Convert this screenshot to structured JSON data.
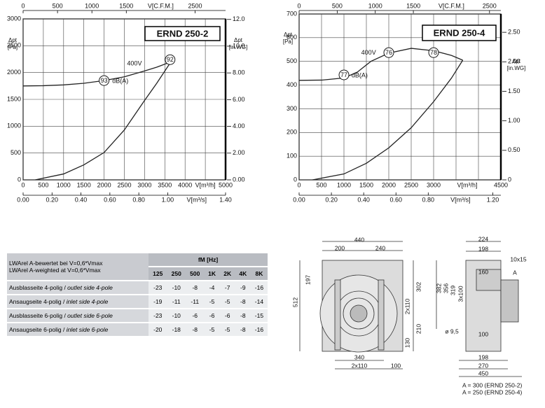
{
  "chart_data": [
    {
      "type": "line",
      "title": "ERND 250-2",
      "ylabel": [
        "Δpt",
        "[Pa]"
      ],
      "y2label": [
        "Δpt",
        "[in.WG]"
      ],
      "xlabel": "V[m³/h]",
      "x2label": "V[C.F.M.]",
      "x3label": "V[m³/s]",
      "xlim": [
        0,
        5000
      ],
      "xticks": [
        0,
        500,
        1000,
        1500,
        2000,
        2500,
        3000,
        3500,
        4000,
        5000
      ],
      "xgrid": [
        0,
        500,
        1000,
        1500,
        2000,
        2500,
        3000,
        3500,
        4000,
        4500,
        5000
      ],
      "x2lim": [
        0,
        2943
      ],
      "x2ticks": [
        0,
        500,
        1000,
        1500,
        2500
      ],
      "x3lim": [
        0,
        1.4
      ],
      "x3ticks": [
        {
          "value": 0,
          "label": "0.00"
        },
        {
          "value": 0.2,
          "label": "0.20"
        },
        {
          "value": 0.4,
          "label": "0.40"
        },
        {
          "value": 0.6,
          "label": "0.60"
        },
        {
          "value": 0.8,
          "label": "0.80"
        },
        {
          "value": 1,
          "label": "1.00"
        },
        {
          "value": 1.4,
          "label": "1.40"
        }
      ],
      "ylim": [
        0,
        3000
      ],
      "yticks": [
        0,
        500,
        1000,
        1500,
        2000,
        2500,
        3000
      ],
      "y2lim": [
        0,
        12.04
      ],
      "y2ticks": [
        {
          "value": 0,
          "label": "0.00"
        },
        {
          "value": 2,
          "label": "2.00"
        },
        {
          "value": 4,
          "label": "4.00"
        },
        {
          "value": 6,
          "label": "6.00"
        },
        {
          "value": 8,
          "label": "8.00"
        },
        {
          "value": 10,
          "label": "10.0"
        },
        {
          "value": 12,
          "label": "12.0"
        }
      ],
      "grid": true,
      "series": [
        {
          "color": "#222222",
          "x": [
            0,
            500,
            1000,
            1500,
            2000,
            2500,
            3000,
            3300,
            3650
          ],
          "values": [
            1750,
            1755,
            1770,
            1800,
            1850,
            1920,
            2030,
            2100,
            2200
          ]
        },
        {
          "color": "#222222",
          "x": [
            300,
            1000,
            1500,
            2000,
            2500,
            3000,
            3300,
            3650
          ],
          "values": [
            0,
            110,
            280,
            510,
            930,
            1480,
            1800,
            2200
          ]
        }
      ],
      "point_labels": [
        {
          "text": "93",
          "x": 2000,
          "y": 1850
        },
        {
          "text": "92",
          "x": 3630,
          "y": 2240
        }
      ],
      "notes": [
        {
          "text": "400V",
          "x": 2750,
          "y": 2165
        },
        {
          "text": "dB(A)",
          "x": 2400,
          "y": 1840
        }
      ]
    },
    {
      "type": "line",
      "title": "ERND 250-4",
      "ylabel": [
        "Δpt",
        "[Pa]"
      ],
      "y2label": [
        "Δpt",
        "[in.WG]"
      ],
      "xlabel": "V[m³/h]",
      "x2label": "V[C.F.M.]",
      "x3label": "V[m³/s]",
      "xlim": [
        0,
        4500
      ],
      "xticks": [
        0,
        500,
        1000,
        1500,
        2000,
        2500,
        3000,
        4500
      ],
      "xgrid": [
        0,
        500,
        1000,
        1500,
        2000,
        2500,
        3000,
        3500,
        4000,
        4500
      ],
      "x2lim": [
        0,
        2649
      ],
      "x2ticks": [
        0,
        500,
        1000,
        1500,
        2500
      ],
      "x3lim": [
        0,
        1.25
      ],
      "x3ticks": [
        {
          "value": 0,
          "label": "0.00"
        },
        {
          "value": 0.2,
          "label": "0.20"
        },
        {
          "value": 0.4,
          "label": "0.40"
        },
        {
          "value": 0.6,
          "label": "0.60"
        },
        {
          "value": 0.8,
          "label": "0.80"
        },
        {
          "value": 1.2,
          "label": "1.20"
        }
      ],
      "ylim": [
        0,
        700
      ],
      "yticks": [
        0,
        100,
        200,
        300,
        400,
        500,
        600,
        700
      ],
      "y2lim": [
        0,
        2.81
      ],
      "y2ticks": [
        0,
        {
          "value": 0.5,
          "label": "0.50"
        },
        {
          "value": 1,
          "label": "1.00"
        },
        {
          "value": 1.5,
          "label": "1.50"
        },
        {
          "value": 2,
          "label": "2.00"
        },
        {
          "value": 2.5,
          "label": "2.50"
        }
      ],
      "grid": true,
      "series": [
        {
          "color": "#222222",
          "x": [
            0,
            500,
            1000,
            1300,
            1600,
            2000,
            2500,
            3000,
            3400,
            3650
          ],
          "values": [
            420,
            421,
            430,
            455,
            500,
            535,
            555,
            545,
            525,
            505
          ]
        },
        {
          "color": "#222222",
          "x": [
            300,
            1000,
            1500,
            2000,
            2500,
            3000,
            3400,
            3650
          ],
          "values": [
            0,
            25,
            70,
            135,
            220,
            330,
            430,
            505
          ]
        }
      ],
      "point_labels": [
        {
          "text": "77",
          "x": 1000,
          "y": 443
        },
        {
          "text": "76",
          "x": 2000,
          "y": 537
        },
        {
          "text": "78",
          "x": 3000,
          "y": 537
        }
      ],
      "notes": [
        {
          "text": "400V",
          "x": 1550,
          "y": 535
        },
        {
          "text": "dB(A)",
          "x": 1350,
          "y": 440
        }
      ]
    }
  ],
  "table": {
    "header": [
      "LWArel A-bewertet bei V=0,6*Vmax",
      "LWArel A-weighted at V=0,6*Vmax"
    ],
    "group": "fM [Hz]",
    "columns": [
      "125",
      "250",
      "500",
      "1K",
      "2K",
      "4K",
      "8K"
    ],
    "rows": [
      {
        "de": "Ausblasseite 4-polig",
        "en": "outlet side 4-pole",
        "values": [
          -23,
          -10,
          -8,
          -4,
          -7,
          -9,
          -16
        ]
      },
      {
        "de": "Ansaugseite 4-polig",
        "en": "inlet side 4-pole",
        "values": [
          -19,
          -11,
          -11,
          -5,
          -5,
          -8,
          -14
        ]
      },
      {
        "de": "Ausblasseite 6-polig",
        "en": "outlet side 6-pole",
        "values": [
          -23,
          -10,
          -6,
          -6,
          -6,
          -8,
          -15
        ]
      },
      {
        "de": "Ansaugseite 6-polig",
        "en": "inlet side 6-pole",
        "values": [
          -20,
          -18,
          -8,
          -5,
          -5,
          -8,
          -16
        ]
      }
    ]
  },
  "drawing": {
    "front": [
      "440",
      "200",
      "240",
      "197",
      "512",
      "302",
      "2x110",
      "210",
      "130",
      "340",
      "2x110",
      "100"
    ],
    "side": [
      "224",
      "198",
      "160",
      "10x15",
      "A",
      "382",
      "356",
      "319",
      "3x100",
      "ø 9,5",
      "100",
      "198",
      "270",
      "450"
    ],
    "notes": [
      "A = 300 (ERND 250-2)",
      "A = 250 (ERND 250-4)"
    ]
  }
}
